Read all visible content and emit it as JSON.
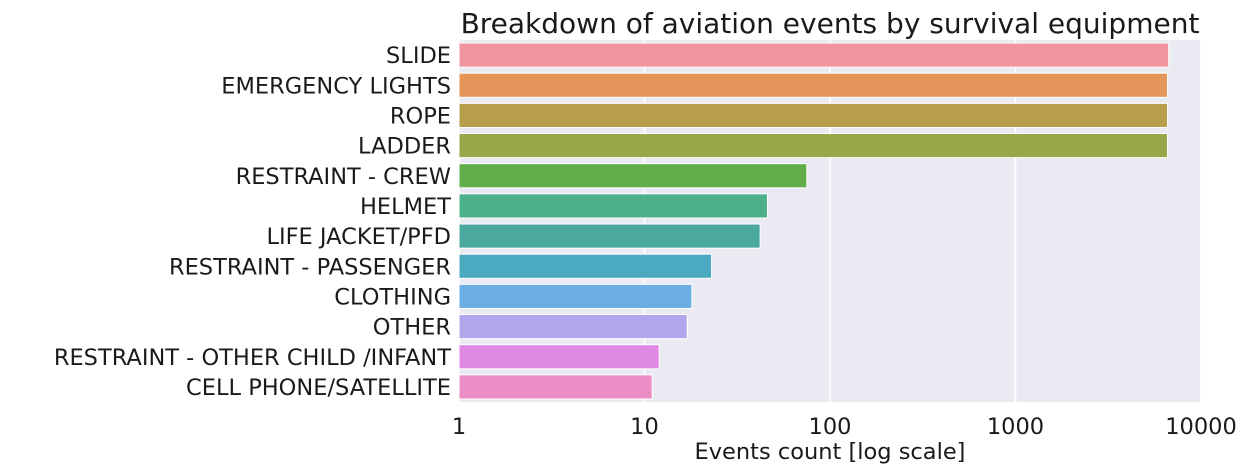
{
  "chart_data": {
    "type": "bar",
    "orientation": "horizontal",
    "title": "Breakdown of aviation events by survival equipment",
    "xlabel": "Events count [log scale]",
    "ylabel": "",
    "x_scale": "log",
    "xlim": [
      1,
      10000
    ],
    "x_ticks": [
      "1",
      "10",
      "100",
      "1000",
      "10000"
    ],
    "grid": true,
    "background": "#eaeaf2",
    "categories": [
      "SLIDE",
      "EMERGENCY LIGHTS",
      "ROPE",
      "LADDER",
      "RESTRAINT - CREW",
      "HELMET",
      "LIFE JACKET/PFD",
      "RESTRAINT - PASSENGER",
      "CLOTHING",
      "OTHER",
      "RESTRAINT - OTHER CHILD /INFANT",
      "CELL PHONE/SATELLITE"
    ],
    "values": [
      6700,
      6600,
      6600,
      6600,
      75,
      46,
      42,
      23,
      18,
      17,
      12,
      11
    ],
    "colors": [
      "#f0949f",
      "#e4965a",
      "#b79e4a",
      "#9aa64a",
      "#60ad4a",
      "#4cb08a",
      "#4ba9a0",
      "#4ba9c0",
      "#6aaee3",
      "#b3a5ec",
      "#e08ae6",
      "#ea8dc4"
    ]
  }
}
